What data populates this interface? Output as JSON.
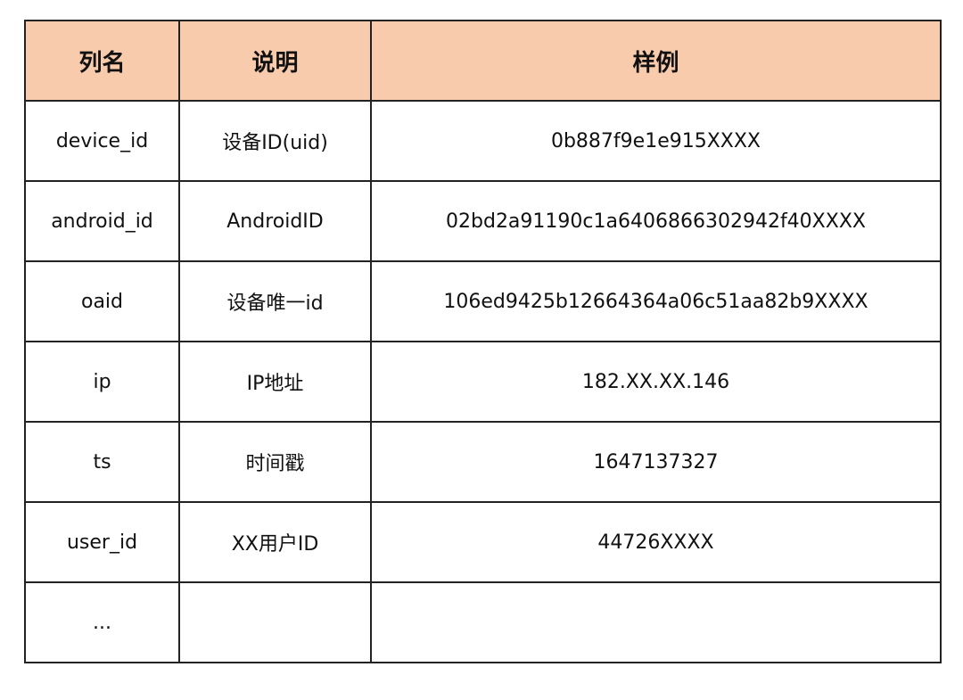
{
  "header_color": "#f8cbad",
  "headers": [
    "列名",
    "说明",
    "样例"
  ],
  "rows": [
    [
      "device_id",
      "设备ID(uid)",
      "0b887f9e1e915XXXX"
    ],
    [
      "android_id",
      "AndroidID",
      "02bd2a91190c1a6406866302942f40XXXX"
    ],
    [
      "oaid",
      "设备唯一id",
      "106ed9425b12664364a06c51aa82b9XXXX"
    ],
    [
      "ip",
      "IP地址",
      "182.XX.XX.146"
    ],
    [
      "ts",
      "时间戳",
      "1647137327"
    ],
    [
      "user_id",
      "XX用户ID",
      "44726XXXX"
    ],
    [
      "...",
      "",
      ""
    ]
  ]
}
